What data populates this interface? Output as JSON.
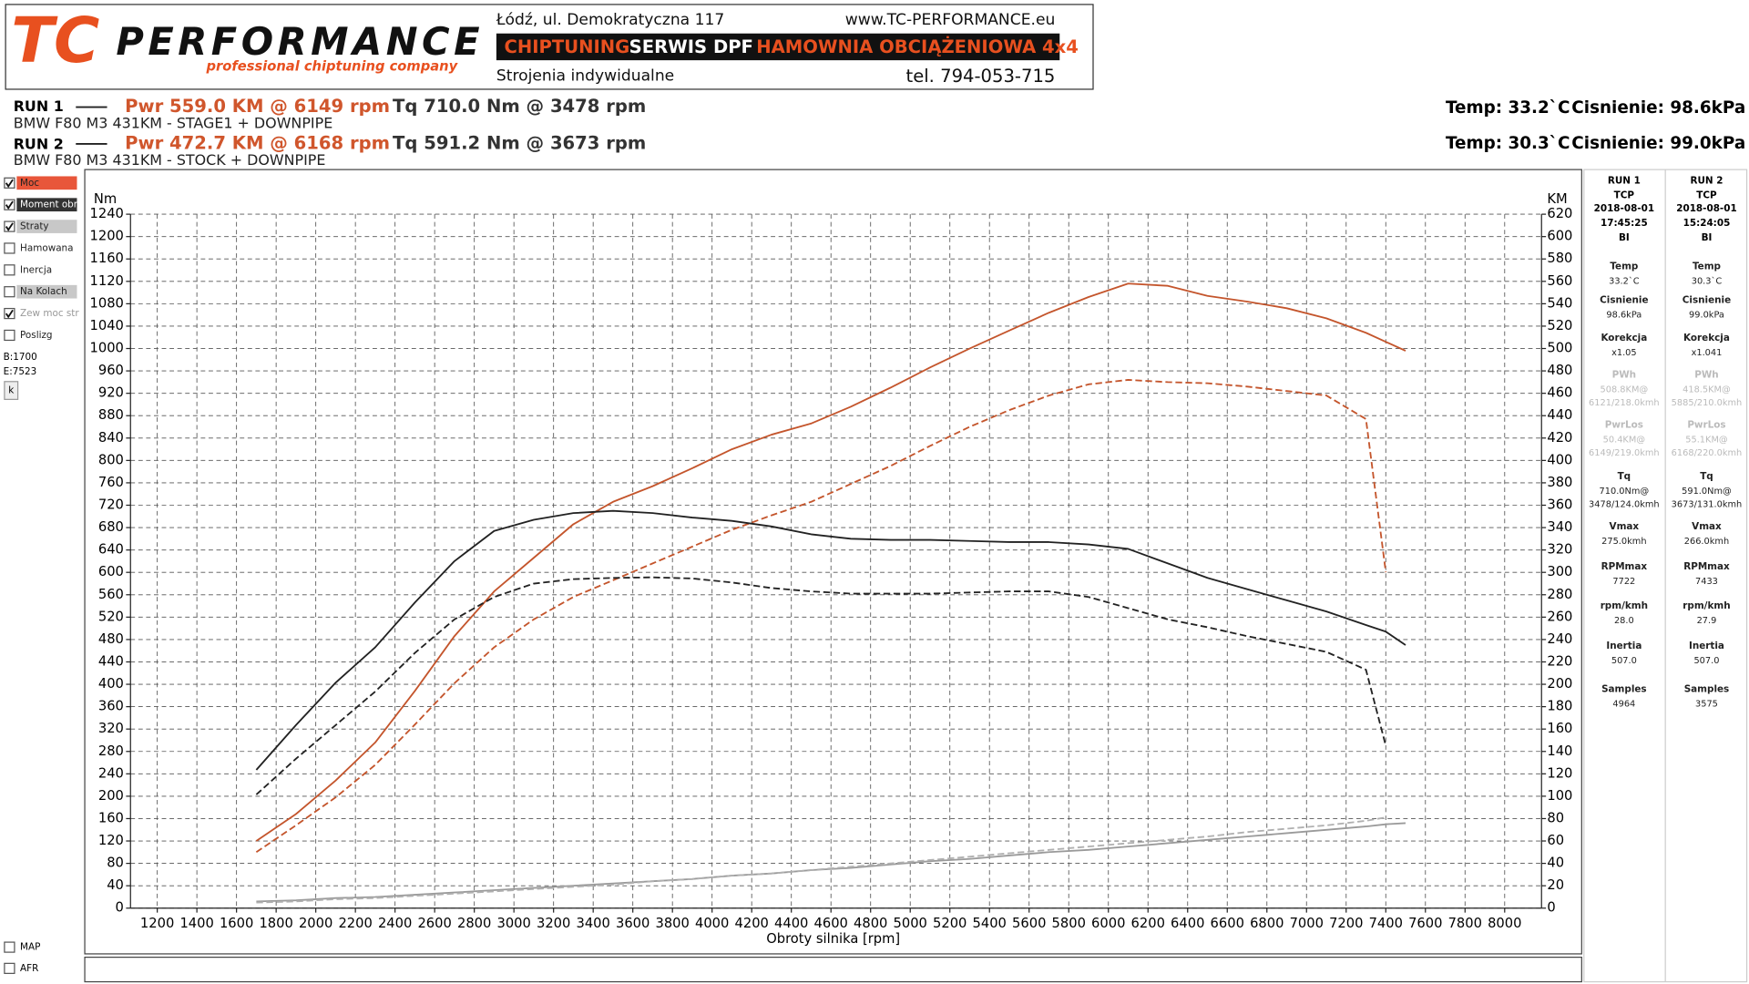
{
  "header": {
    "logo_main": "TC",
    "logo_word": "PERFORMANCE",
    "tagline": "professional chiptuning company",
    "address": "Łódź, ul. Demokratyczna 117",
    "website": "www.TC-PERFORMANCE.eu",
    "band": [
      "CHIPTUNING",
      "SERWIS DPF",
      "HAMOWNIA OBCIĄŻENIOWA 4x4"
    ],
    "subline": "Strojenia indywidualne",
    "phone": "tel. 794-053-715"
  },
  "runs": [
    {
      "label": "RUN 1",
      "power": "Pwr  559.0 KM @ 6149 rpm",
      "torque": "Tq 710.0 Nm @ 3478 rpm",
      "description": "BMW F80 M3 431KM - STAGE1 + DOWNPIPE",
      "temp": "Temp: 33.2`C",
      "pressure": "Cisnienie: 98.6kPa"
    },
    {
      "label": "RUN 2",
      "power": "Pwr  472.7 KM @ 6168 rpm",
      "torque": "Tq 591.2 Nm @ 3673 rpm",
      "description": "BMW F80 M3 431KM - STOCK + DOWNPIPE",
      "temp": "Temp: 30.3`C",
      "pressure": "Cisnienie: 99.0kPa"
    }
  ],
  "sidebar": {
    "items": [
      {
        "label": "Moc",
        "checked": true,
        "bg": "#e8563a",
        "text_color": "#222"
      },
      {
        "label": "Moment obr.",
        "checked": true,
        "bg": "#333333",
        "text_color": "#ffffff"
      },
      {
        "label": "Straty",
        "checked": true,
        "bg": "#c8c8c8",
        "text_color": "#222"
      },
      {
        "label": "Hamowana",
        "checked": false
      },
      {
        "label": "Inercja",
        "checked": false
      },
      {
        "label": "Na Kolach",
        "checked": false,
        "bg": "#c8c8c8",
        "text_color": "#222"
      },
      {
        "label": "Zew moc str",
        "checked": true,
        "text_color": "#999999"
      },
      {
        "label": "Poslizg",
        "checked": false
      }
    ],
    "begin": "B:1700",
    "end": "E:7523",
    "button": "k",
    "bottom_items": [
      {
        "label": "MAP",
        "checked": false
      },
      {
        "label": "AFR",
        "checked": false
      }
    ]
  },
  "info_panel": [
    {
      "header": [
        "RUN 1",
        "TCP",
        "2018-08-01",
        "17:45:25",
        "BI"
      ],
      "items": [
        {
          "label": "Temp",
          "value": [
            "33.2`C"
          ]
        },
        {
          "label": "Cisnienie",
          "value": [
            "98.6kPa"
          ]
        },
        {
          "label": "Korekcja",
          "value": [
            "x1.05"
          ]
        },
        {
          "label": "PWh",
          "value": [
            "508.8KM@",
            "6121/218.0kmh"
          ],
          "muted": true
        },
        {
          "label": "PwrLos",
          "value": [
            "50.4KM@",
            "6149/219.0kmh"
          ],
          "muted": true
        },
        {
          "label": "Tq",
          "value": [
            "710.0Nm@",
            "3478/124.0kmh"
          ]
        },
        {
          "label": "Vmax",
          "value": [
            "275.0kmh"
          ]
        },
        {
          "label": "RPMmax",
          "value": [
            "7722"
          ]
        },
        {
          "label": "rpm/kmh",
          "value": [
            "28.0"
          ]
        },
        {
          "label": "Inertia",
          "value": [
            "507.0"
          ]
        },
        {
          "label": "Samples",
          "value": [
            "4964"
          ]
        }
      ]
    },
    {
      "header": [
        "RUN 2",
        "TCP",
        "2018-08-01",
        "15:24:05",
        "BI"
      ],
      "items": [
        {
          "label": "Temp",
          "value": [
            "30.3`C"
          ]
        },
        {
          "label": "Cisnienie",
          "value": [
            "99.0kPa"
          ]
        },
        {
          "label": "Korekcja",
          "value": [
            "x1.041"
          ]
        },
        {
          "label": "PWh",
          "value": [
            "418.5KM@",
            "5885/210.0kmh"
          ],
          "muted": true
        },
        {
          "label": "PwrLos",
          "value": [
            "55.1KM@",
            "6168/220.0kmh"
          ],
          "muted": true
        },
        {
          "label": "Tq",
          "value": [
            "591.0Nm@",
            "3673/131.0kmh"
          ]
        },
        {
          "label": "Vmax",
          "value": [
            "266.0kmh"
          ]
        },
        {
          "label": "RPMmax",
          "value": [
            "7433"
          ]
        },
        {
          "label": "rpm/kmh",
          "value": [
            "27.9"
          ]
        },
        {
          "label": "Inertia",
          "value": [
            "507.0"
          ]
        },
        {
          "label": "Samples",
          "value": [
            "3575"
          ]
        }
      ]
    }
  ],
  "chart_data": {
    "type": "line",
    "ylabel": "Nm",
    "y2label": "KM",
    "xlabel": "Obroty silnika [rpm]",
    "grid": true,
    "xlim": [
      1065,
      8186
    ],
    "ylim": [
      0,
      1240
    ],
    "y2lim": [
      0,
      620
    ],
    "xticks": [
      1200,
      1400,
      1600,
      1800,
      2000,
      2200,
      2400,
      2600,
      2800,
      3000,
      3200,
      3400,
      3600,
      3800,
      4000,
      4200,
      4400,
      4600,
      4800,
      5000,
      5200,
      5400,
      5600,
      5800,
      6000,
      6200,
      6400,
      6600,
      6800,
      7000,
      7200,
      7400,
      7600,
      7800,
      8000
    ],
    "yticks": [
      0,
      40,
      80,
      120,
      160,
      200,
      240,
      280,
      320,
      360,
      400,
      440,
      480,
      520,
      560,
      600,
      640,
      680,
      720,
      760,
      800,
      840,
      880,
      920,
      960,
      1000,
      1040,
      1080,
      1120,
      1160,
      1200,
      1240
    ],
    "y2ticks": [
      0,
      20,
      40,
      60,
      80,
      100,
      120,
      140,
      160,
      180,
      200,
      220,
      240,
      260,
      280,
      300,
      320,
      340,
      360,
      380,
      400,
      420,
      440,
      460,
      480,
      500,
      520,
      540,
      560,
      580,
      600,
      620
    ],
    "x": [
      1700,
      1900,
      2100,
      2300,
      2500,
      2700,
      2900,
      3100,
      3300,
      3500,
      3700,
      3900,
      4100,
      4300,
      4500,
      4700,
      4900,
      5100,
      5300,
      5500,
      5700,
      5900,
      6100,
      6300,
      6500,
      6700,
      6900,
      7100,
      7300,
      7400,
      7500
    ],
    "series": [
      {
        "name": "RUN 1 Moc",
        "color": "#c4552c",
        "style": "solid",
        "axis": "y2",
        "values": [
          60,
          84,
          114,
          148,
          194,
          243,
          283,
          313,
          343,
          363,
          377,
          393,
          410,
          423,
          433,
          448,
          465,
          483,
          500,
          516,
          532,
          546,
          558,
          556,
          547,
          542,
          536,
          527,
          514,
          506,
          498
        ]
      },
      {
        "name": "RUN 2 Moc",
        "color": "#c4552c",
        "style": "dashed",
        "axis": "y2",
        "values": [
          50,
          74,
          99,
          128,
          164,
          201,
          233,
          258,
          278,
          293,
          308,
          323,
          338,
          351,
          363,
          379,
          395,
          413,
          430,
          445,
          458,
          468,
          472,
          470,
          469,
          466,
          462,
          458,
          437,
          300,
          null
        ]
      },
      {
        "name": "RUN 1 Moment obr.",
        "color": "#222222",
        "style": "solid",
        "values": [
          247,
          327,
          403,
          466,
          546,
          620,
          674,
          694,
          706,
          710,
          706,
          698,
          692,
          682,
          668,
          660,
          658,
          658,
          656,
          654,
          654,
          650,
          642,
          616,
          590,
          570,
          550,
          530,
          506,
          494,
          470
        ]
      },
      {
        "name": "RUN 2 Moment obr.",
        "color": "#222222",
        "style": "dashed",
        "values": [
          203,
          267,
          327,
          387,
          456,
          516,
          556,
          580,
          588,
          590,
          591,
          589,
          582,
          572,
          566,
          562,
          562,
          562,
          564,
          566,
          566,
          556,
          536,
          516,
          502,
          486,
          472,
          458,
          426,
          290,
          null
        ]
      },
      {
        "name": "RUN 1 Straty",
        "color": "#9a9a9a",
        "style": "solid",
        "axis": "y2",
        "values": [
          6,
          7,
          9,
          10,
          12,
          14,
          16,
          18,
          20,
          22,
          24,
          26,
          29,
          31,
          34,
          36,
          39,
          42,
          44,
          47,
          50,
          52,
          55,
          58,
          61,
          64,
          67,
          70,
          73,
          75,
          76
        ]
      },
      {
        "name": "RUN 2 Straty",
        "color": "#b0b0b0",
        "style": "dashed",
        "axis": "y2",
        "values": [
          5,
          6,
          8,
          9,
          11,
          13,
          15,
          17,
          19,
          21,
          24,
          26,
          29,
          31,
          34,
          37,
          40,
          43,
          46,
          49,
          52,
          55,
          58,
          61,
          64,
          68,
          71,
          74,
          78,
          81,
          null
        ]
      }
    ]
  }
}
